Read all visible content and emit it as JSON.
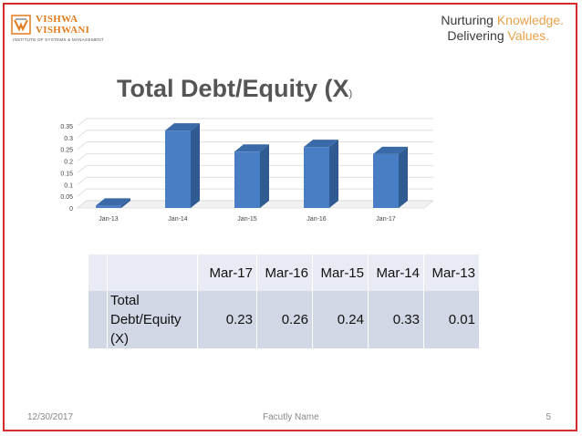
{
  "header": {
    "logo_line1": "VISHWA",
    "logo_line2": "VISHWANI",
    "logo_sub": "INSTITUTE OF SYSTEMS & MANAGEMENT",
    "tagline_line1_a": "Nurturing ",
    "tagline_line1_b": "Knowledge.",
    "tagline_line2_a": "Delivering ",
    "tagline_line2_b": "Values."
  },
  "title": {
    "main": "Total Debt/Equity (X",
    "paren": ")"
  },
  "chart_data": {
    "type": "bar",
    "categories": [
      "Jan-13",
      "Jan-14",
      "Jan-15",
      "Jan-16",
      "Jan-17"
    ],
    "values": [
      0.01,
      0.33,
      0.24,
      0.26,
      0.23
    ],
    "ylim": [
      0,
      0.35
    ],
    "yticks": [
      "0",
      "0.05",
      "0.1",
      "0.15",
      "0.2",
      "0.25",
      "0.3",
      "0.35"
    ],
    "grid": true,
    "style": "3d",
    "colors": {
      "front": "#4a7ec4",
      "side": "#2f5a92",
      "top": "#3b6aa8"
    }
  },
  "table": {
    "headers": [
      "Mar-17",
      "Mar-16",
      "Mar-15",
      "Mar-14",
      "Mar-13"
    ],
    "row_label_lines": [
      "Total",
      "Debt/Equity",
      "(X)"
    ],
    "values": [
      "0.23",
      "0.26",
      "0.24",
      "0.33",
      "0.01"
    ]
  },
  "footer": {
    "date": "12/30/2017",
    "name": "Facutly Name",
    "page": "5"
  },
  "colors": {
    "frame": "#d62b2b",
    "logo_orange": "#e07c1e",
    "tagline_accent": "#e8a04a"
  }
}
